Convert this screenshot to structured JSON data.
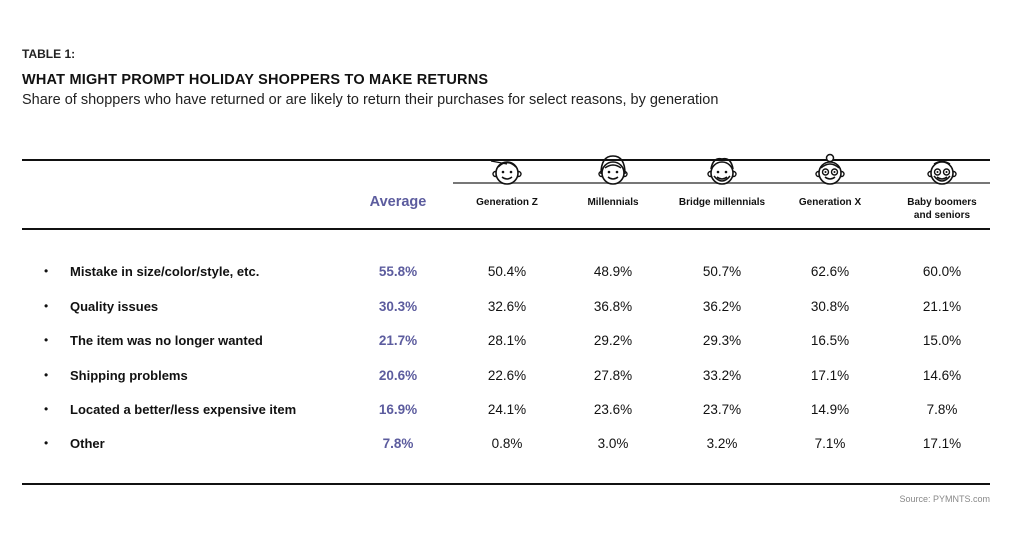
{
  "header": {
    "label": "TABLE 1:",
    "title": "WHAT MIGHT PROMPT HOLIDAY SHOPPERS TO MAKE RETURNS",
    "subtitle": "Share of shoppers who have returned or are likely to return their purchases for select reasons, by generation"
  },
  "columns": {
    "average": "Average",
    "generations": [
      {
        "line1": "Generation Z",
        "line2": "",
        "icon": "gen-z-face-icon"
      },
      {
        "line1": "Millennials",
        "line2": "",
        "icon": "millennial-face-icon"
      },
      {
        "line1": "Bridge millennials",
        "line2": "",
        "icon": "bridge-millennial-face-icon"
      },
      {
        "line1": "Generation X",
        "line2": "",
        "icon": "gen-x-face-icon"
      },
      {
        "line1": "Baby boomers",
        "line2": "and seniors",
        "icon": "boomer-face-icon"
      }
    ]
  },
  "rows": [
    {
      "label": "Mistake in size/color/style, etc.",
      "avg": "55.8%",
      "values": [
        "50.4%",
        "48.9%",
        "50.7%",
        "62.6%",
        "60.0%"
      ]
    },
    {
      "label": "Quality issues",
      "avg": "30.3%",
      "values": [
        "32.6%",
        "36.8%",
        "36.2%",
        "30.8%",
        "21.1%"
      ]
    },
    {
      "label": "The item was no longer wanted",
      "avg": "21.7%",
      "values": [
        "28.1%",
        "29.2%",
        "29.3%",
        "16.5%",
        "15.0%"
      ]
    },
    {
      "label": "Shipping problems",
      "avg": "20.6%",
      "values": [
        "22.6%",
        "27.8%",
        "33.2%",
        "17.1%",
        "14.6%"
      ]
    },
    {
      "label": "Located a better/less expensive item",
      "avg": "16.9%",
      "values": [
        "24.1%",
        "23.6%",
        "23.7%",
        "14.9%",
        "7.8%"
      ]
    },
    {
      "label": "Other",
      "avg": "7.8%",
      "values": [
        "0.8%",
        "3.0%",
        "3.2%",
        "7.1%",
        "17.1%"
      ]
    }
  ],
  "bullet": "•",
  "source": "Source: PYMNTS.com",
  "colors": {
    "accent": "#5c5c9e",
    "text": "#111111"
  },
  "chart_data": {
    "type": "table",
    "title": "WHAT MIGHT PROMPT HOLIDAY SHOPPERS TO MAKE RETURNS",
    "columns": [
      "Average",
      "Generation Z",
      "Millennials",
      "Bridge millennials",
      "Generation X",
      "Baby boomers and seniors"
    ],
    "rows": [
      "Mistake in size/color/style, etc.",
      "Quality issues",
      "The item was no longer wanted",
      "Shipping problems",
      "Located a better/less expensive item",
      "Other"
    ],
    "values": [
      [
        55.8,
        50.4,
        48.9,
        50.7,
        62.6,
        60.0
      ],
      [
        30.3,
        32.6,
        36.8,
        36.2,
        30.8,
        21.1
      ],
      [
        21.7,
        28.1,
        29.2,
        29.3,
        16.5,
        15.0
      ],
      [
        20.6,
        22.6,
        27.8,
        33.2,
        17.1,
        14.6
      ],
      [
        16.9,
        24.1,
        23.6,
        23.7,
        14.9,
        7.8
      ],
      [
        7.8,
        0.8,
        3.0,
        3.2,
        7.1,
        17.1
      ]
    ]
  }
}
